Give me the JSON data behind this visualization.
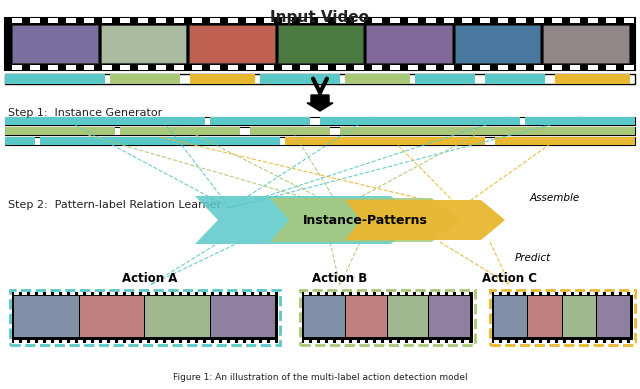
{
  "title": "Input Video",
  "caption": "Figure 1: An illustration of the multi-label action detection model",
  "step1_label": "Step 1:  Instance Generator",
  "step2_label": "Step 2:  Pattern-label Relation Learner",
  "instance_patterns_label": "Instance-Patterns",
  "assemble_label": "Assemble",
  "predict_label": "Predict",
  "action_a_label": "Action A",
  "action_b_label": "Action B",
  "action_c_label": "Action C",
  "color_cyan": "#5BC8C8",
  "color_green": "#A8C878",
  "color_yellow": "#E8B830",
  "color_dark": "#222222",
  "color_bg": "#FFFFFF",
  "color_filmstrip": "#111111",
  "color_arrow_dark": "#333333"
}
